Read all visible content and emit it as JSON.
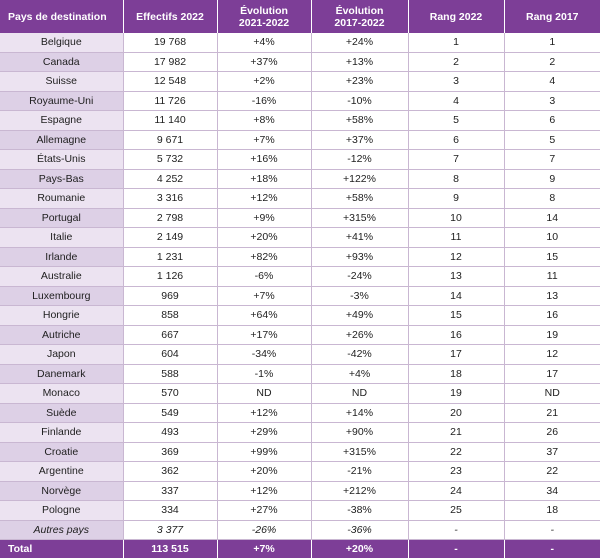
{
  "colors": {
    "header_bg": "#7d3e97",
    "country_cell_bg": "#ece3f1",
    "country_cell_bg_alt": "#ddd0e6",
    "grid_line": "#c9b7d2"
  },
  "header": {
    "col1": "Pays de destination",
    "col2": "Effectifs 2022",
    "col3_line1": "Évolution",
    "col3_line2": "2021-2022",
    "col4_line1": "Évolution",
    "col4_line2": "2017-2022",
    "col5": "Rang 2022",
    "col6": "Rang 2017"
  },
  "rows": [
    {
      "country": "Belgique",
      "effectifs": "19 768",
      "evo1": "+4%",
      "evo2": "+24%",
      "rang2022": "1",
      "rang2017": "1"
    },
    {
      "country": "Canada",
      "effectifs": "17 982",
      "evo1": "+37%",
      "evo2": "+13%",
      "rang2022": "2",
      "rang2017": "2"
    },
    {
      "country": "Suisse",
      "effectifs": "12 548",
      "evo1": "+2%",
      "evo2": "+23%",
      "rang2022": "3",
      "rang2017": "4"
    },
    {
      "country": "Royaume-Uni",
      "effectifs": "11 726",
      "evo1": "-16%",
      "evo2": "-10%",
      "rang2022": "4",
      "rang2017": "3"
    },
    {
      "country": "Espagne",
      "effectifs": "11 140",
      "evo1": "+8%",
      "evo2": "+58%",
      "rang2022": "5",
      "rang2017": "6"
    },
    {
      "country": "Allemagne",
      "effectifs": "9 671",
      "evo1": "+7%",
      "evo2": "+37%",
      "rang2022": "6",
      "rang2017": "5"
    },
    {
      "country": "États-Unis",
      "effectifs": "5 732",
      "evo1": "+16%",
      "evo2": "-12%",
      "rang2022": "7",
      "rang2017": "7"
    },
    {
      "country": "Pays-Bas",
      "effectifs": "4 252",
      "evo1": "+18%",
      "evo2": "+122%",
      "rang2022": "8",
      "rang2017": "9"
    },
    {
      "country": "Roumanie",
      "effectifs": "3 316",
      "evo1": "+12%",
      "evo2": "+58%",
      "rang2022": "9",
      "rang2017": "8"
    },
    {
      "country": "Portugal",
      "effectifs": "2 798",
      "evo1": "+9%",
      "evo2": "+315%",
      "rang2022": "10",
      "rang2017": "14"
    },
    {
      "country": "Italie",
      "effectifs": "2 149",
      "evo1": "+20%",
      "evo2": "+41%",
      "rang2022": "11",
      "rang2017": "10"
    },
    {
      "country": "Irlande",
      "effectifs": "1 231",
      "evo1": "+82%",
      "evo2": "+93%",
      "rang2022": "12",
      "rang2017": "15"
    },
    {
      "country": "Australie",
      "effectifs": "1 126",
      "evo1": "-6%",
      "evo2": "-24%",
      "rang2022": "13",
      "rang2017": "11"
    },
    {
      "country": "Luxembourg",
      "effectifs": "969",
      "evo1": "+7%",
      "evo2": "-3%",
      "rang2022": "14",
      "rang2017": "13"
    },
    {
      "country": "Hongrie",
      "effectifs": "858",
      "evo1": "+64%",
      "evo2": "+49%",
      "rang2022": "15",
      "rang2017": "16"
    },
    {
      "country": "Autriche",
      "effectifs": "667",
      "evo1": "+17%",
      "evo2": "+26%",
      "rang2022": "16",
      "rang2017": "19"
    },
    {
      "country": "Japon",
      "effectifs": "604",
      "evo1": "-34%",
      "evo2": "-42%",
      "rang2022": "17",
      "rang2017": "12"
    },
    {
      "country": "Danemark",
      "effectifs": "588",
      "evo1": "-1%",
      "evo2": "+4%",
      "rang2022": "18",
      "rang2017": "17"
    },
    {
      "country": "Monaco",
      "effectifs": "570",
      "evo1": "ND",
      "evo2": "ND",
      "rang2022": "19",
      "rang2017": "ND"
    },
    {
      "country": "Suède",
      "effectifs": "549",
      "evo1": "+12%",
      "evo2": "+14%",
      "rang2022": "20",
      "rang2017": "21"
    },
    {
      "country": "Finlande",
      "effectifs": "493",
      "evo1": "+29%",
      "evo2": "+90%",
      "rang2022": "21",
      "rang2017": "26"
    },
    {
      "country": "Croatie",
      "effectifs": "369",
      "evo1": "+99%",
      "evo2": "+315%",
      "rang2022": "22",
      "rang2017": "37"
    },
    {
      "country": "Argentine",
      "effectifs": "362",
      "evo1": "+20%",
      "evo2": "-21%",
      "rang2022": "23",
      "rang2017": "22"
    },
    {
      "country": "Norvège",
      "effectifs": "337",
      "evo1": "+12%",
      "evo2": "+212%",
      "rang2022": "24",
      "rang2017": "34"
    },
    {
      "country": "Pologne",
      "effectifs": "334",
      "evo1": "+27%",
      "evo2": "-38%",
      "rang2022": "25",
      "rang2017": "18"
    },
    {
      "country": "Autres pays",
      "effectifs": "3 377",
      "evo1": "-26%",
      "evo2": "-36%",
      "rang2022": "-",
      "rang2017": "-"
    }
  ],
  "total": {
    "label": "Total",
    "effectifs": "113 515",
    "evo1": "+7%",
    "evo2": "+20%",
    "rang2022": "-",
    "rang2017": "-"
  }
}
